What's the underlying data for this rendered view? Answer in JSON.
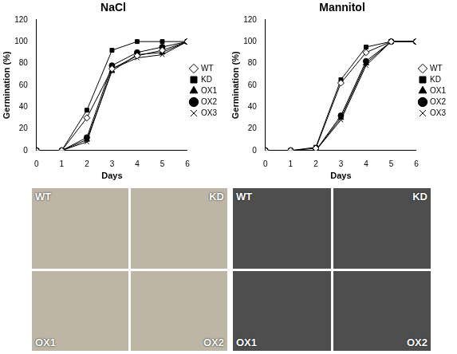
{
  "chart_data": [
    {
      "type": "line",
      "title": "NaCl",
      "x_label": "Days",
      "y_label": "Germination (%)",
      "x": [
        0,
        1,
        2,
        3,
        4,
        5,
        6
      ],
      "series": [
        {
          "name": "WT",
          "color": "#000000",
          "marker": "diamond-open",
          "values": [
            0,
            0,
            30,
            75,
            87,
            92,
            100
          ]
        },
        {
          "name": "KD",
          "color": "#000000",
          "marker": "square",
          "values": [
            0,
            0,
            37,
            92,
            100,
            100,
            100
          ]
        },
        {
          "name": "OX1",
          "color": "#000000",
          "marker": "triangle",
          "values": [
            0,
            0,
            10,
            73,
            88,
            90,
            100
          ]
        },
        {
          "name": "OX2",
          "color": "#000000",
          "marker": "circle",
          "values": [
            0,
            0,
            12,
            78,
            90,
            95,
            100
          ]
        },
        {
          "name": "OX3",
          "color": "#000000",
          "marker": "x",
          "values": [
            0,
            0,
            8,
            75,
            85,
            88,
            100
          ]
        }
      ],
      "xlim": [
        0,
        6
      ],
      "xticks": [
        0,
        1,
        2,
        3,
        4,
        5,
        6
      ],
      "ylim": [
        0,
        120
      ],
      "yticks": [
        0,
        20,
        40,
        60,
        80,
        100,
        120
      ],
      "grid": false,
      "legend": "right"
    },
    {
      "type": "line",
      "title": "Mannitol",
      "x_label": "Days",
      "y_label": "Germination (%)",
      "x": [
        0,
        1,
        2,
        3,
        4,
        5,
        6
      ],
      "series": [
        {
          "name": "WT",
          "color": "#000000",
          "marker": "diamond-open",
          "values": [
            0,
            0,
            2,
            62,
            90,
            100,
            100
          ]
        },
        {
          "name": "KD",
          "color": "#000000",
          "marker": "square",
          "values": [
            0,
            0,
            3,
            65,
            95,
            100,
            100
          ]
        },
        {
          "name": "OX1",
          "color": "#000000",
          "marker": "triangle",
          "values": [
            0,
            0,
            0,
            30,
            80,
            100,
            100
          ]
        },
        {
          "name": "OX2",
          "color": "#000000",
          "marker": "circle",
          "values": [
            0,
            0,
            0,
            32,
            82,
            100,
            100
          ]
        },
        {
          "name": "OX3",
          "color": "#000000",
          "marker": "x",
          "values": [
            0,
            0,
            0,
            28,
            78,
            100,
            100
          ]
        }
      ],
      "xlim": [
        0,
        6
      ],
      "xticks": [
        0,
        1,
        2,
        3,
        4,
        5,
        6
      ],
      "ylim": [
        0,
        120
      ],
      "yticks": [
        0,
        20,
        40,
        60,
        80,
        100,
        120
      ],
      "grid": false,
      "legend": "right"
    }
  ],
  "photos": [
    {
      "labels": [
        "WT",
        "KD",
        "OX1",
        "OX2"
      ]
    },
    {
      "labels": [
        "WT",
        "KD",
        "OX1",
        "OX2"
      ]
    }
  ]
}
